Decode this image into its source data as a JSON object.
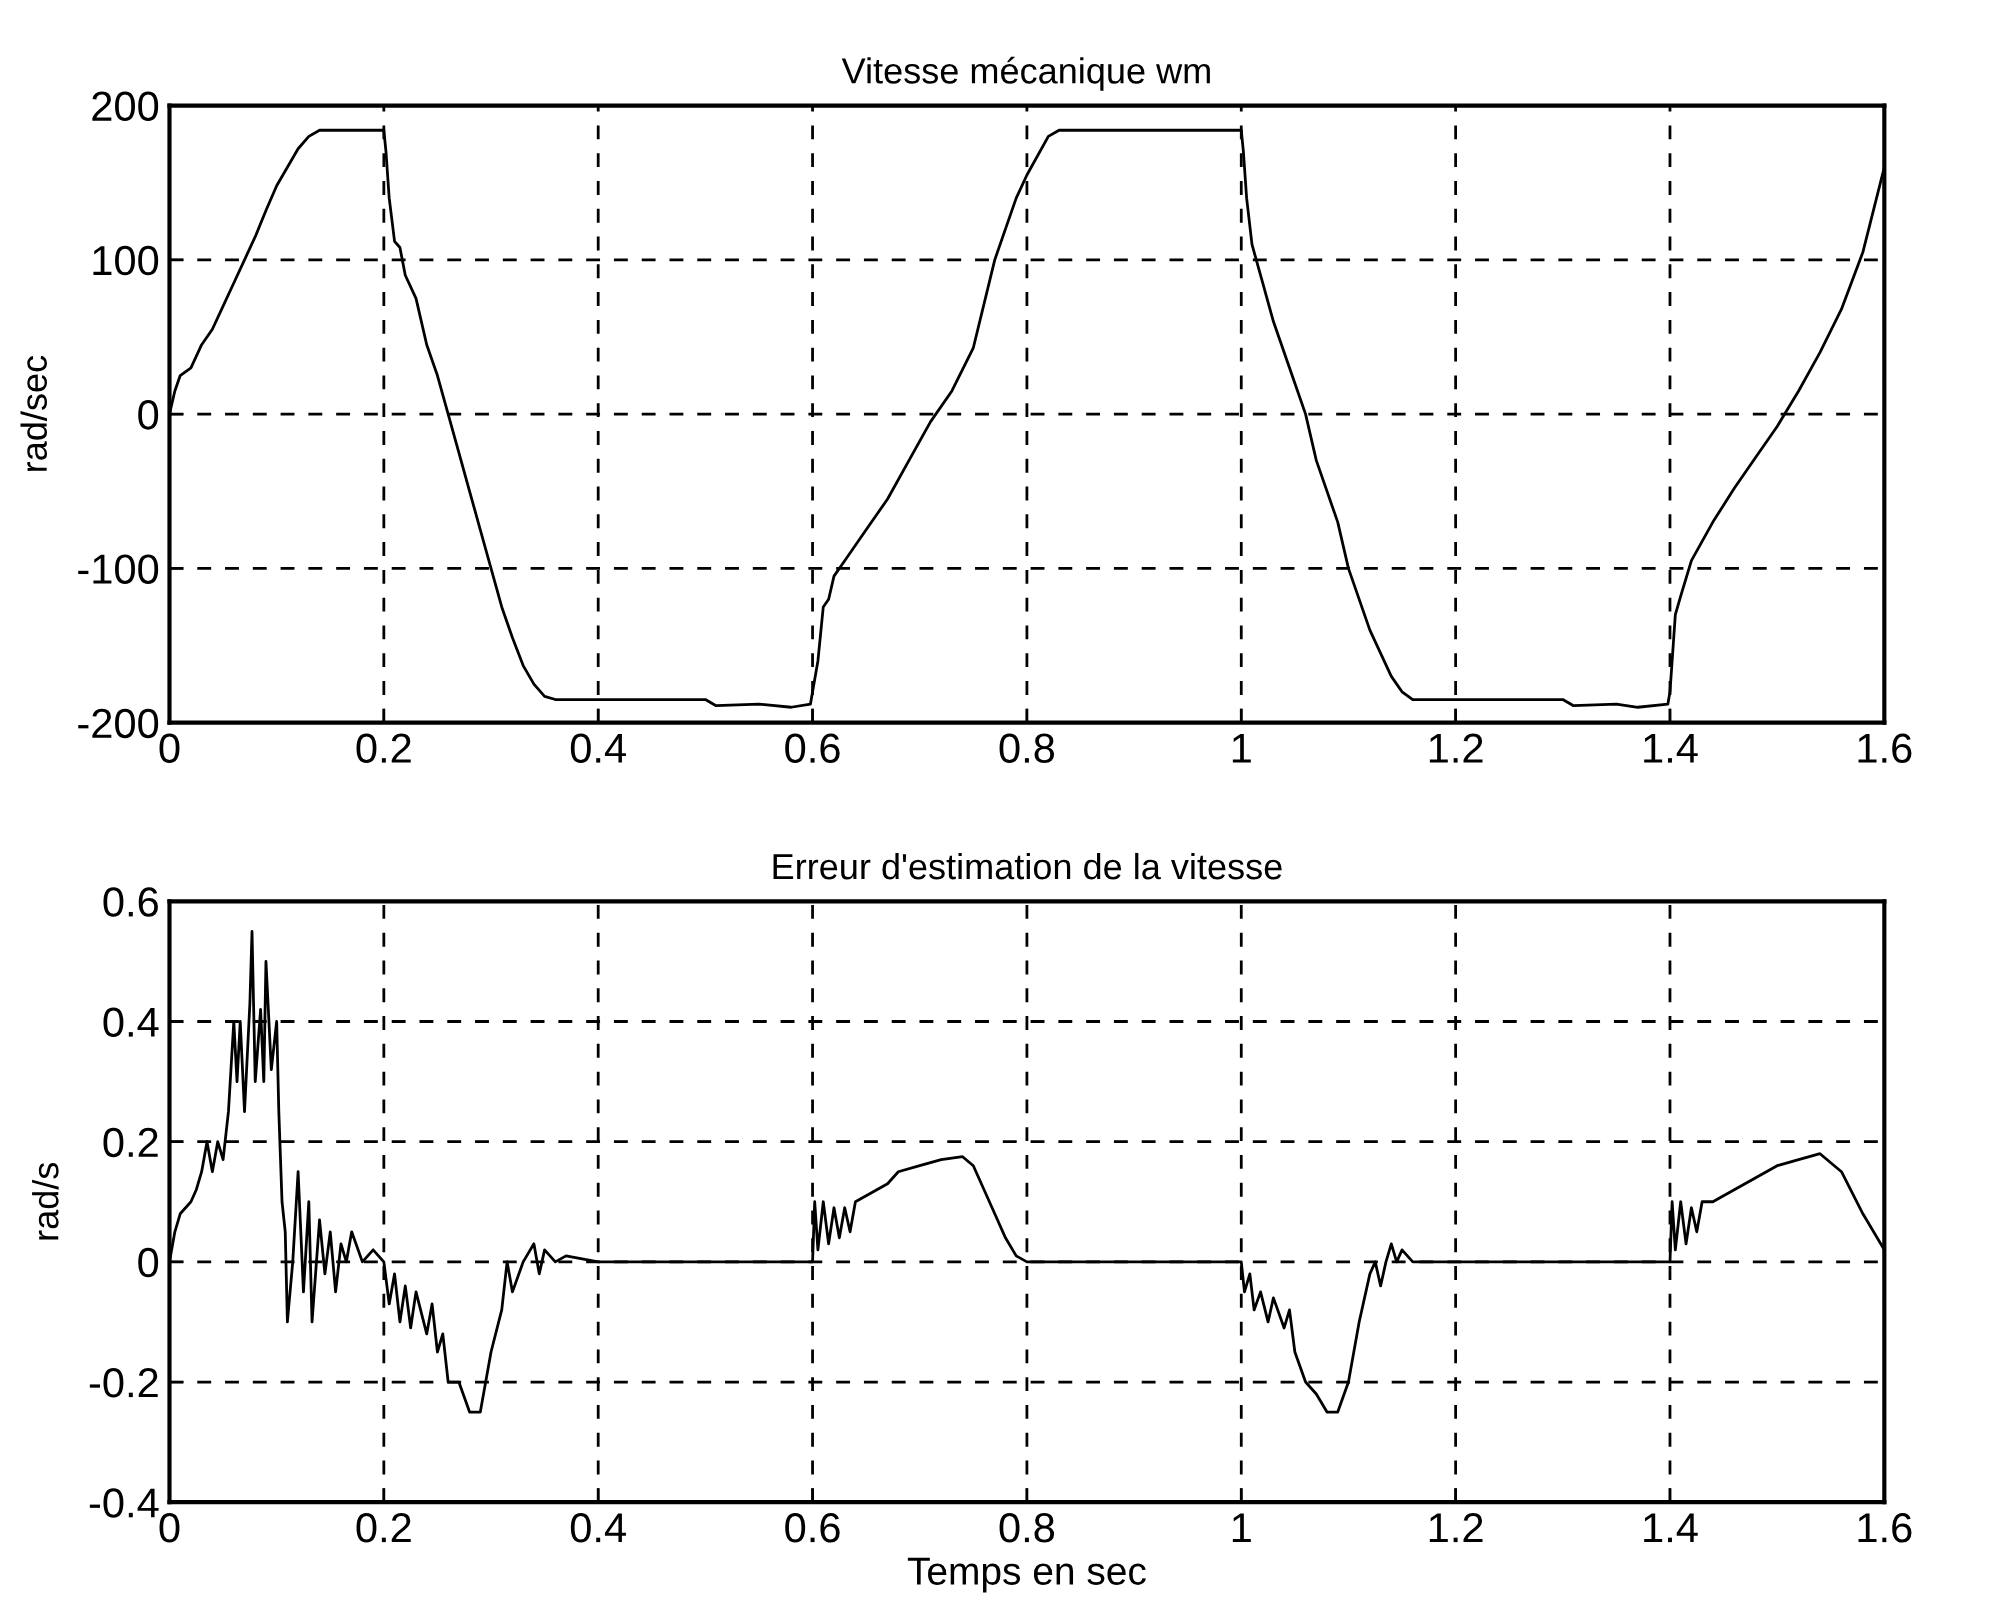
{
  "chart_data": [
    {
      "type": "line",
      "title": "Vitesse mécanique wm",
      "ylabel": "rad/sec",
      "xlim": [
        0,
        1.6
      ],
      "ylim": [
        -200,
        200
      ],
      "xticks": [
        0,
        0.2,
        0.4,
        0.6,
        0.8,
        1,
        1.2,
        1.4,
        1.6
      ],
      "yticks": [
        -200,
        -100,
        0,
        100,
        200
      ],
      "grid": true,
      "marker": "none",
      "line_style": "solid",
      "series": [
        {
          "color": "#000000",
          "x": [
            0,
            0.005,
            0.01,
            0.02,
            0.03,
            0.04,
            0.05,
            0.06,
            0.07,
            0.08,
            0.09,
            0.1,
            0.11,
            0.12,
            0.13,
            0.14,
            0.2,
            0.202,
            0.205,
            0.21,
            0.215,
            0.22,
            0.23,
            0.24,
            0.25,
            0.26,
            0.27,
            0.28,
            0.29,
            0.3,
            0.31,
            0.32,
            0.33,
            0.34,
            0.35,
            0.36,
            0.5,
            0.51,
            0.55,
            0.58,
            0.598,
            0.6,
            0.605,
            0.61,
            0.615,
            0.62,
            0.63,
            0.65,
            0.67,
            0.69,
            0.71,
            0.73,
            0.75,
            0.77,
            0.79,
            0.8,
            0.82,
            0.83,
            1.0,
            1.002,
            1.005,
            1.01,
            1.02,
            1.03,
            1.05,
            1.06,
            1.07,
            1.09,
            1.1,
            1.12,
            1.14,
            1.15,
            1.16,
            1.3,
            1.31,
            1.35,
            1.37,
            1.398,
            1.4,
            1.405,
            1.41,
            1.42,
            1.44,
            1.46,
            1.48,
            1.5,
            1.52,
            1.54,
            1.56,
            1.58,
            1.6
          ],
          "values": [
            0,
            15,
            25,
            30,
            45,
            55,
            70,
            85,
            100,
            115,
            132,
            148,
            160,
            172,
            180,
            184,
            184,
            170,
            140,
            112,
            108,
            90,
            75,
            45,
            25,
            0,
            -25,
            -50,
            -75,
            -100,
            -125,
            -145,
            -163,
            -175,
            -183,
            -185,
            -185,
            -189,
            -188,
            -190,
            -188,
            -180,
            -160,
            -125,
            -120,
            -105,
            -95,
            -75,
            -55,
            -30,
            -5,
            15,
            43,
            100,
            140,
            155,
            180,
            184,
            184,
            170,
            140,
            110,
            85,
            60,
            20,
            0,
            -30,
            -70,
            -100,
            -140,
            -170,
            -180,
            -185,
            -185,
            -189,
            -188,
            -190,
            -188,
            -180,
            -130,
            -118,
            -95,
            -70,
            -48,
            -28,
            -8,
            15,
            40,
            68,
            105,
            160
          ]
        }
      ]
    },
    {
      "type": "line",
      "title": "Erreur d'estimation de la vitesse",
      "xlabel": "Temps en sec",
      "ylabel": "rad/s",
      "xlim": [
        0,
        1.6
      ],
      "ylim": [
        -0.4,
        0.6
      ],
      "xticks": [
        0,
        0.2,
        0.4,
        0.6,
        0.8,
        1,
        1.2,
        1.4,
        1.6
      ],
      "yticks": [
        -0.4,
        -0.2,
        0,
        0.2,
        0.4,
        0.6
      ],
      "grid": true,
      "marker": "none",
      "line_style": "solid",
      "series": [
        {
          "color": "#000000",
          "x": [
            0,
            0.005,
            0.01,
            0.015,
            0.02,
            0.025,
            0.03,
            0.035,
            0.04,
            0.045,
            0.05,
            0.055,
            0.06,
            0.063,
            0.066,
            0.07,
            0.075,
            0.077,
            0.08,
            0.085,
            0.088,
            0.09,
            0.095,
            0.1,
            0.102,
            0.105,
            0.108,
            0.11,
            0.115,
            0.12,
            0.125,
            0.13,
            0.133,
            0.14,
            0.145,
            0.15,
            0.155,
            0.16,
            0.165,
            0.17,
            0.18,
            0.19,
            0.2,
            0.205,
            0.21,
            0.215,
            0.22,
            0.225,
            0.23,
            0.24,
            0.245,
            0.25,
            0.255,
            0.26,
            0.27,
            0.28,
            0.29,
            0.295,
            0.3,
            0.31,
            0.315,
            0.32,
            0.33,
            0.34,
            0.345,
            0.35,
            0.36,
            0.37,
            0.4,
            0.6,
            0.602,
            0.605,
            0.61,
            0.615,
            0.62,
            0.625,
            0.63,
            0.635,
            0.64,
            0.65,
            0.66,
            0.67,
            0.68,
            0.7,
            0.72,
            0.74,
            0.75,
            0.76,
            0.77,
            0.78,
            0.79,
            0.8,
            1.0,
            1.003,
            1.008,
            1.012,
            1.018,
            1.025,
            1.03,
            1.04,
            1.045,
            1.05,
            1.06,
            1.07,
            1.08,
            1.09,
            1.1,
            1.11,
            1.12,
            1.125,
            1.13,
            1.135,
            1.14,
            1.145,
            1.15,
            1.16,
            1.4,
            1.402,
            1.405,
            1.41,
            1.415,
            1.42,
            1.425,
            1.43,
            1.44,
            1.46,
            1.48,
            1.5,
            1.52,
            1.54,
            1.56,
            1.58,
            1.6
          ],
          "values": [
            0,
            0.05,
            0.08,
            0.09,
            0.1,
            0.12,
            0.15,
            0.2,
            0.15,
            0.2,
            0.17,
            0.25,
            0.4,
            0.3,
            0.4,
            0.25,
            0.43,
            0.55,
            0.3,
            0.42,
            0.3,
            0.5,
            0.32,
            0.4,
            0.25,
            0.1,
            0.05,
            -0.1,
            0,
            0.15,
            -0.05,
            0.1,
            -0.1,
            0.07,
            -0.02,
            0.05,
            -0.05,
            0.03,
            0,
            0.05,
            0,
            0.02,
            0,
            -0.07,
            -0.02,
            -0.1,
            -0.04,
            -0.11,
            -0.05,
            -0.12,
            -0.07,
            -0.15,
            -0.12,
            -0.2,
            -0.2,
            -0.25,
            -0.25,
            -0.2,
            -0.15,
            -0.08,
            0,
            -0.05,
            0,
            0.03,
            -0.02,
            0.02,
            0,
            0.01,
            0,
            0,
            0.1,
            0.02,
            0.1,
            0.03,
            0.09,
            0.04,
            0.09,
            0.05,
            0.1,
            0.11,
            0.12,
            0.13,
            0.15,
            0.16,
            0.17,
            0.175,
            0.16,
            0.12,
            0.08,
            0.04,
            0.01,
            0,
            0,
            -0.05,
            -0.02,
            -0.08,
            -0.05,
            -0.1,
            -0.06,
            -0.11,
            -0.08,
            -0.15,
            -0.2,
            -0.22,
            -0.25,
            -0.25,
            -0.2,
            -0.1,
            -0.02,
            0,
            -0.04,
            0,
            0.03,
            0,
            0.02,
            0,
            0,
            0.1,
            0.02,
            0.1,
            0.03,
            0.09,
            0.05,
            0.1,
            0.1,
            0.12,
            0.14,
            0.16,
            0.17,
            0.18,
            0.15,
            0.08,
            0.02
          ]
        }
      ]
    }
  ]
}
